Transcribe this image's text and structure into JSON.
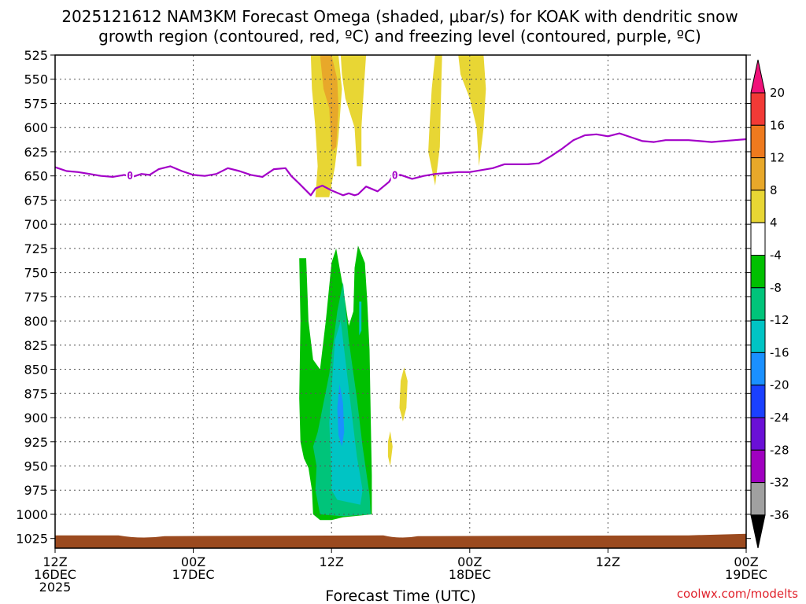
{
  "chart_data": {
    "type": "heatmap",
    "title_line1": "2025121612 NAM3KM Forecast Omega (shaded, μbar/s) for KOAK with dendritic snow",
    "title_line2": "growth region (contoured, red, ºC) and freezing level (contoured, purple, ºC)",
    "xlabel": "Forecast Time (UTC)",
    "x_ticks": [
      {
        "hour": 0,
        "line1": "12Z",
        "line2": "16DEC",
        "line3": "2025"
      },
      {
        "hour": 12,
        "line1": "00Z",
        "line2": "17DEC",
        "line3": ""
      },
      {
        "hour": 24,
        "line1": "12Z",
        "line2": "",
        "line3": ""
      },
      {
        "hour": 36,
        "line1": "00Z",
        "line2": "18DEC",
        "line3": ""
      },
      {
        "hour": 48,
        "line1": "12Z",
        "line2": "",
        "line3": ""
      },
      {
        "hour": 60,
        "line1": "00Z",
        "line2": "19DEC",
        "line3": ""
      }
    ],
    "x_range_hours": [
      0,
      60
    ],
    "y_levels_hPa": [
      525,
      550,
      575,
      600,
      625,
      650,
      675,
      700,
      725,
      750,
      775,
      800,
      825,
      850,
      875,
      900,
      925,
      950,
      975,
      1000,
      1025
    ],
    "y_range_hPa": [
      525,
      1035
    ],
    "colorbar": {
      "labels": [
        "20",
        "16",
        "12",
        "8",
        "4",
        "-4",
        "-8",
        "-12",
        "-16",
        "-20",
        "-24",
        "-28",
        "-32",
        "-36"
      ],
      "colors": [
        "#f0127a",
        "#f23a36",
        "#ee7a1e",
        "#e8a82a",
        "#e8d634",
        "#ffffff",
        "#00c000",
        "#00c47a",
        "#00c4c4",
        "#1a90ff",
        "#1a40ff",
        "#6a10d6",
        "#a000c0",
        "#a0a0a0",
        "#000000"
      ]
    },
    "omega_regions": [
      {
        "name": "updraft-yellow-main",
        "value": 4,
        "color": "#e8d634",
        "points": [
          [
            22.2,
            525
          ],
          [
            24.6,
            525
          ],
          [
            24.9,
            560
          ],
          [
            24.6,
            610
          ],
          [
            24.3,
            640
          ],
          [
            23.8,
            672
          ],
          [
            22.6,
            672
          ],
          [
            22.8,
            640
          ],
          [
            22.6,
            600
          ],
          [
            22.3,
            560
          ]
        ]
      },
      {
        "name": "updraft-yellow-right",
        "value": 4,
        "color": "#e8d634",
        "points": [
          [
            24.8,
            525
          ],
          [
            27.0,
            525
          ],
          [
            26.8,
            560
          ],
          [
            26.6,
            600
          ],
          [
            26.6,
            640
          ],
          [
            26.2,
            640
          ],
          [
            26.0,
            600
          ],
          [
            25.2,
            570
          ],
          [
            24.9,
            545
          ]
        ]
      },
      {
        "name": "updraft-orange-core",
        "value": 8,
        "color": "#e8a82a",
        "points": [
          [
            23.0,
            525
          ],
          [
            24.0,
            525
          ],
          [
            24.5,
            550
          ],
          [
            24.6,
            580
          ],
          [
            24.4,
            620
          ],
          [
            24.0,
            625
          ],
          [
            23.8,
            580
          ],
          [
            23.3,
            560
          ]
        ]
      },
      {
        "name": "updraft-yellow-col3",
        "value": 4,
        "color": "#e8d634",
        "points": [
          [
            33.0,
            525
          ],
          [
            33.6,
            525
          ],
          [
            33.5,
            570
          ],
          [
            33.4,
            620
          ],
          [
            33.0,
            660
          ],
          [
            32.4,
            625
          ],
          [
            32.5,
            600
          ],
          [
            32.7,
            560
          ]
        ]
      },
      {
        "name": "updraft-yellow-col4",
        "value": 4,
        "color": "#e8d634",
        "points": [
          [
            35.0,
            525
          ],
          [
            37.2,
            525
          ],
          [
            37.4,
            560
          ],
          [
            37.2,
            600
          ],
          [
            36.8,
            640
          ],
          [
            36.6,
            600
          ],
          [
            36.0,
            570
          ],
          [
            35.2,
            545
          ]
        ]
      },
      {
        "name": "updraft-yellow-blob-a",
        "value": 4,
        "color": "#e8d634",
        "points": [
          [
            30.3,
            848
          ],
          [
            30.6,
            862
          ],
          [
            30.5,
            890
          ],
          [
            30.2,
            904
          ],
          [
            29.9,
            890
          ],
          [
            30.0,
            862
          ]
        ]
      },
      {
        "name": "updraft-yellow-blob-b",
        "value": 4,
        "color": "#e8d634",
        "points": [
          [
            29.1,
            914
          ],
          [
            29.3,
            930
          ],
          [
            29.1,
            950
          ],
          [
            28.9,
            940
          ],
          [
            28.9,
            925
          ]
        ]
      },
      {
        "name": "downdraft-green",
        "value": -4,
        "color": "#00c000",
        "points": [
          [
            21.2,
            735
          ],
          [
            21.8,
            735
          ],
          [
            22.0,
            800
          ],
          [
            22.4,
            840
          ],
          [
            23.0,
            850
          ],
          [
            23.5,
            800
          ],
          [
            24.0,
            740
          ],
          [
            24.4,
            725
          ],
          [
            25.0,
            765
          ],
          [
            25.5,
            805
          ],
          [
            25.9,
            790
          ],
          [
            26.0,
            745
          ],
          [
            26.3,
            722
          ],
          [
            26.9,
            740
          ],
          [
            27.1,
            780
          ],
          [
            27.3,
            830
          ],
          [
            27.4,
            900
          ],
          [
            27.5,
            960
          ],
          [
            27.5,
            1000
          ],
          [
            25.0,
            1003
          ],
          [
            24.0,
            1006
          ],
          [
            23.0,
            1006
          ],
          [
            22.4,
            1000
          ],
          [
            22.3,
            975
          ],
          [
            22.0,
            952
          ],
          [
            21.6,
            942
          ],
          [
            21.3,
            925
          ],
          [
            21.2,
            880
          ],
          [
            21.3,
            800
          ]
        ]
      },
      {
        "name": "downdraft-teal",
        "value": -8,
        "color": "#00c47a",
        "points": [
          [
            22.8,
            915
          ],
          [
            23.8,
            855
          ],
          [
            24.5,
            790
          ],
          [
            25.0,
            760
          ],
          [
            25.5,
            820
          ],
          [
            26.2,
            880
          ],
          [
            26.7,
            930
          ],
          [
            27.3,
            980
          ],
          [
            27.4,
            1000
          ],
          [
            25.0,
            1002
          ],
          [
            23.0,
            1000
          ],
          [
            22.6,
            975
          ],
          [
            22.7,
            950
          ],
          [
            22.4,
            930
          ]
        ]
      },
      {
        "name": "downdraft-cyan",
        "value": -12,
        "color": "#00c4c4",
        "points": [
          [
            23.8,
            905
          ],
          [
            24.3,
            820
          ],
          [
            24.8,
            800
          ],
          [
            25.2,
            840
          ],
          [
            25.8,
            900
          ],
          [
            26.2,
            940
          ],
          [
            26.7,
            975
          ],
          [
            26.5,
            990
          ],
          [
            24.5,
            985
          ],
          [
            24.0,
            975
          ],
          [
            24.0,
            960
          ]
        ]
      },
      {
        "name": "downdraft-cyan-streak",
        "value": -12,
        "color": "#00c4c4",
        "points": [
          [
            26.4,
            780
          ],
          [
            26.6,
            780
          ],
          [
            26.6,
            810
          ],
          [
            26.4,
            815
          ]
        ]
      },
      {
        "name": "downdraft-blue-core",
        "value": -16,
        "color": "#1a90ff",
        "points": [
          [
            24.7,
            865
          ],
          [
            25.0,
            885
          ],
          [
            25.1,
            915
          ],
          [
            24.9,
            930
          ],
          [
            24.6,
            918
          ],
          [
            24.5,
            890
          ]
        ]
      }
    ],
    "freezing_level": {
      "label": "0",
      "color": "#a300c8",
      "points": [
        [
          0,
          641
        ],
        [
          1,
          645
        ],
        [
          2,
          646
        ],
        [
          3,
          648
        ],
        [
          4,
          650
        ],
        [
          5,
          651
        ],
        [
          6,
          649
        ],
        [
          6.7,
          651
        ],
        [
          7.5,
          648
        ],
        [
          8.2,
          649
        ],
        [
          9,
          643
        ],
        [
          10,
          640
        ],
        [
          11,
          645
        ],
        [
          12,
          649
        ],
        [
          13,
          650
        ],
        [
          14,
          648
        ],
        [
          15,
          642
        ],
        [
          16,
          645
        ],
        [
          17,
          649
        ],
        [
          18,
          651
        ],
        [
          19,
          643
        ],
        [
          20,
          642
        ],
        [
          20.5,
          650
        ],
        [
          21.2,
          658
        ],
        [
          22.2,
          670
        ],
        [
          22.6,
          663
        ],
        [
          23.2,
          660
        ],
        [
          24,
          665
        ],
        [
          25,
          670
        ],
        [
          25.5,
          668
        ],
        [
          26,
          670
        ],
        [
          26.3,
          669
        ],
        [
          27.0,
          661
        ],
        [
          28,
          666
        ],
        [
          29,
          656
        ],
        [
          29.3,
          650
        ],
        [
          30,
          649
        ],
        [
          31,
          653
        ],
        [
          32,
          650
        ],
        [
          33,
          648
        ],
        [
          34,
          647
        ],
        [
          35,
          646
        ],
        [
          36,
          646
        ],
        [
          37,
          644
        ],
        [
          38,
          642
        ],
        [
          39,
          638
        ],
        [
          40,
          638
        ],
        [
          41,
          638
        ],
        [
          42,
          637
        ],
        [
          43,
          630
        ],
        [
          44,
          622
        ],
        [
          45,
          613
        ],
        [
          46,
          608
        ],
        [
          47,
          607
        ],
        [
          48,
          609
        ],
        [
          49,
          606
        ],
        [
          50,
          610
        ],
        [
          51,
          614
        ],
        [
          52,
          615
        ],
        [
          53,
          613
        ],
        [
          54,
          613
        ],
        [
          55,
          613
        ],
        [
          56,
          614
        ],
        [
          57,
          615
        ],
        [
          58,
          614
        ],
        [
          59,
          613
        ],
        [
          60,
          612
        ]
      ],
      "label_hours": [
        6.5,
        29.5
      ]
    },
    "surface_band_color": "#9b4a1f",
    "credit": "coolwx.com/modelts"
  }
}
